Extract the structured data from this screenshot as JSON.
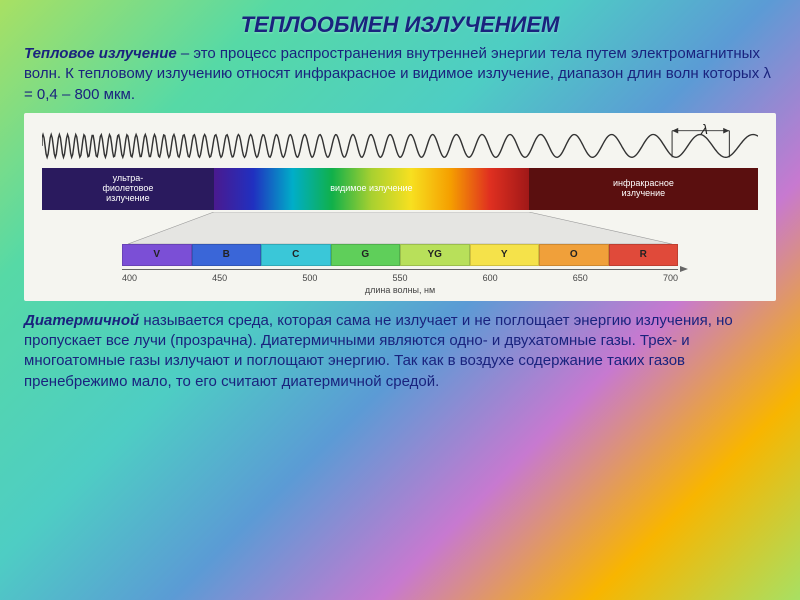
{
  "title": "ТЕПЛООБМЕН ИЗЛУЧЕНИЕМ",
  "intro": {
    "subtitle": "Тепловое излучение",
    "text": " – это процесс распространения внутренней энергии тела путем электромагнитных волн. К тепловому излучению относят инфракрасное и видимое излучение, диапазон длин волн которых λ = 0,4 – 800 мкм."
  },
  "wave_lambda": "λ",
  "spectrum_segments": [
    {
      "label": "ультра-\nфиолетовое\nизлучение",
      "bg": "#2a1a5e",
      "width": 24
    },
    {
      "label": "видимое излучение",
      "bg_gradient": true,
      "width": 44
    },
    {
      "label": "инфракрасное\nизлучение",
      "bg": "#5a0f0f",
      "width": 32
    }
  ],
  "visible_gradient_stops": [
    "#4a1a8f",
    "#2030c0",
    "#00aec8",
    "#10b04a",
    "#a8d030",
    "#f7e020",
    "#f59f00",
    "#e03020",
    "#a01818"
  ],
  "color_boxes": [
    {
      "code": "V",
      "bg": "#7b4fd6"
    },
    {
      "code": "B",
      "bg": "#3a66d8"
    },
    {
      "code": "C",
      "bg": "#3ac7d8"
    },
    {
      "code": "G",
      "bg": "#5fcf5a"
    },
    {
      "code": "YG",
      "bg": "#b8e05a"
    },
    {
      "code": "Y",
      "bg": "#f5e24a"
    },
    {
      "code": "O",
      "bg": "#f0a03a"
    },
    {
      "code": "R",
      "bg": "#e04a3a"
    }
  ],
  "axis": {
    "ticks": [
      "400",
      "450",
      "500",
      "550",
      "600",
      "650",
      "700"
    ],
    "label": "длина волны, нм"
  },
  "body": {
    "lead": "Диатермичной",
    "text": " называется среда, которая сама не излучает и не поглощает энергию излучения, но пропускает все лучи (прозрачна). Диатермичными являются одно- и двухатомные газы. Трех- и многоатомные газы излучают и поглощают энергию. Так как в воздухе содержание таких газов пренебрежимо мало, то его считают диатермичной средой."
  }
}
